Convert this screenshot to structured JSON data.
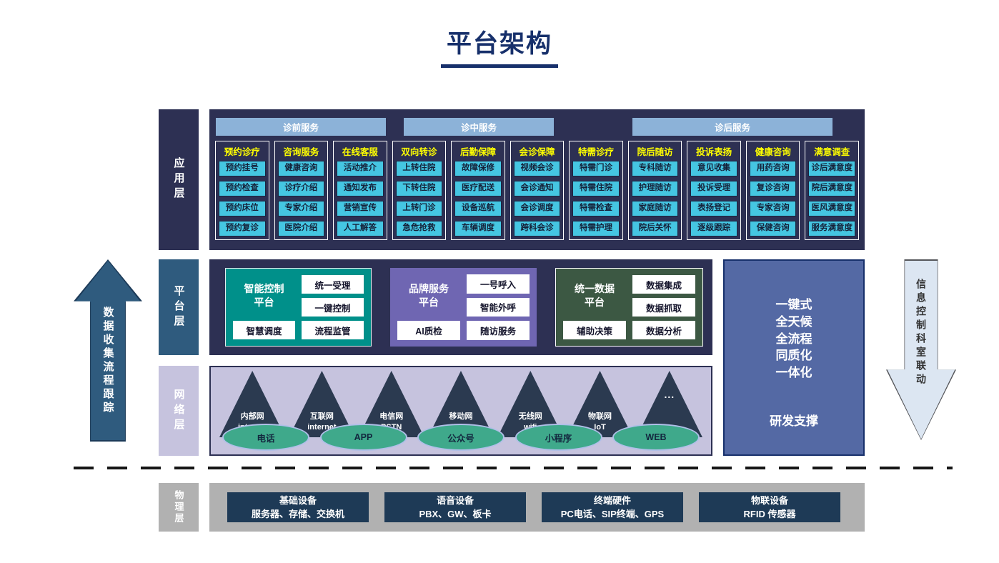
{
  "title": "平台架构",
  "left_arrow": {
    "label": "数据收集流程跟踪"
  },
  "right_arrow": {
    "label": "信息控制科室联动"
  },
  "right_panel": {
    "features": [
      "一键式",
      "全天候",
      "全流程",
      "同质化",
      "一体化"
    ],
    "support": "研发支撑"
  },
  "layers": {
    "app": {
      "label": "应用层",
      "service_groups": [
        "诊前服务",
        "诊中服务",
        "诊后服务"
      ],
      "columns": [
        {
          "header": "预约诊疗",
          "items": [
            "预约挂号",
            "预约检查",
            "预约床位",
            "预约复诊"
          ]
        },
        {
          "header": "咨询服务",
          "items": [
            "健康咨询",
            "诊疗介绍",
            "专家介绍",
            "医院介绍"
          ]
        },
        {
          "header": "在线客服",
          "items": [
            "活动推介",
            "通知发布",
            "营销宣传",
            "人工解答"
          ]
        },
        {
          "header": "双向转诊",
          "items": [
            "上转住院",
            "下转住院",
            "上转门诊",
            "急危抢救"
          ]
        },
        {
          "header": "后勤保障",
          "items": [
            "故障保修",
            "医疗配送",
            "设备巡航",
            "车辆调度"
          ]
        },
        {
          "header": "会诊保障",
          "items": [
            "视频会诊",
            "会诊通知",
            "会诊调度",
            "跨科会诊"
          ]
        },
        {
          "header": "特需诊疗",
          "items": [
            "特需门诊",
            "特需住院",
            "特需检查",
            "特需护理"
          ]
        },
        {
          "header": "院后随访",
          "items": [
            "专科随访",
            "护理随访",
            "家庭随访",
            "院后关怀"
          ]
        },
        {
          "header": "投诉表扬",
          "items": [
            "意见收集",
            "投诉受理",
            "表扬登记",
            "逐级跟踪"
          ]
        },
        {
          "header": "健康咨询",
          "items": [
            "用药咨询",
            "复诊咨询",
            "专家咨询",
            "保健咨询"
          ]
        },
        {
          "header": "满意调查",
          "items": [
            "诊后满意度",
            "院后满意度",
            "医风满意度",
            "服务满意度"
          ]
        }
      ]
    },
    "platform": {
      "label": "平台层",
      "boxes": [
        {
          "title": "智能控制平台",
          "items": [
            "统一受理",
            "一键控制",
            "智慧调度",
            "流程监管"
          ]
        },
        {
          "title": "品牌服务平台",
          "items": [
            "一号呼入",
            "智能外呼",
            "AI质检",
            "随访服务"
          ]
        },
        {
          "title": "统一数据平台",
          "items": [
            "数据集成",
            "数据抓取",
            "辅助决策",
            "数据分析"
          ]
        }
      ]
    },
    "network": {
      "label": "网络层",
      "triangles": [
        {
          "cn": "内部网",
          "en": "intranet"
        },
        {
          "cn": "互联网",
          "en": "internet"
        },
        {
          "cn": "电信网",
          "en": "PSTN"
        },
        {
          "cn": "移动网",
          "en": "5G"
        },
        {
          "cn": "无线网",
          "en": "wifi"
        },
        {
          "cn": "物联网",
          "en": "IoT"
        },
        {
          "cn": "...",
          "en": ""
        }
      ],
      "channels": [
        "电话",
        "APP",
        "公众号",
        "小程序",
        "WEB"
      ]
    },
    "physical": {
      "label": "物理层",
      "boxes": [
        {
          "name": "基础设备",
          "devices": "服务器、存储、交换机"
        },
        {
          "name": "语音设备",
          "devices": "PBX、GW、板卡"
        },
        {
          "name": "终端硬件",
          "devices": "PC电话、SIP终端、GPS"
        },
        {
          "name": "物联设备",
          "devices": "RFID 传感器"
        }
      ]
    }
  },
  "colors": {
    "title_navy": "#17306b",
    "app_layer_bg": "#2d3053",
    "group_bar": "#8cb2d8",
    "column_header_yellow": "#ffff00",
    "cell_cyan": "#45c6e2",
    "platform_label_steel": "#2f5b7e",
    "box_teal": "#00908a",
    "box_purple": "#6f66b2",
    "box_green": "#3c5843",
    "right_panel_blue": "#5469a4",
    "network_bg": "#c6c3de",
    "triangle_navy": "#2b3a50",
    "ellipse_green": "#3fa98b",
    "physical_gray": "#b1b1b1",
    "device_box_navy": "#1e3a56",
    "down_arrow_light": "#dce6f2"
  }
}
